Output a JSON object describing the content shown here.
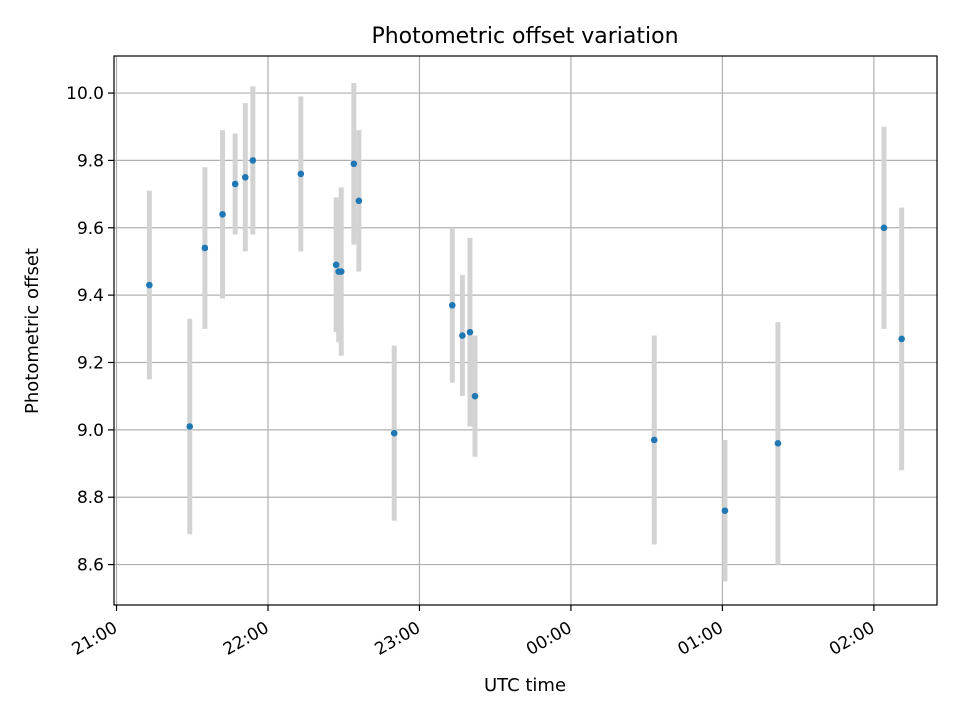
{
  "chart_data": {
    "type": "scatter",
    "title": "Photometric offset variation",
    "xlabel": "UTC time",
    "ylabel": "Photometric offset",
    "x_tick_labels": [
      "21:00",
      "22:00",
      "23:00",
      "00:00",
      "01:00",
      "02:00"
    ],
    "y_tick_labels": [
      "8.6",
      "8.8",
      "9.0",
      "9.2",
      "9.4",
      "9.6",
      "9.8",
      "10.0"
    ],
    "ylim": [
      8.48,
      10.11
    ],
    "xlim": [
      "20:59",
      "02:25"
    ],
    "grid": true,
    "colors": {
      "point": "#1f77b4",
      "errorbar": "#d3d3d3",
      "grid": "#b0b0b0"
    },
    "series": [
      {
        "points": [
          {
            "x": "21:13",
            "y": 9.43,
            "err": 0.28
          },
          {
            "x": "21:29",
            "y": 9.01,
            "err": 0.32
          },
          {
            "x": "21:35",
            "y": 9.54,
            "err": 0.24
          },
          {
            "x": "21:42",
            "y": 9.64,
            "err": 0.25
          },
          {
            "x": "21:47",
            "y": 9.73,
            "err": 0.15
          },
          {
            "x": "21:51",
            "y": 9.75,
            "err": 0.22
          },
          {
            "x": "21:54",
            "y": 9.8,
            "err": 0.22
          },
          {
            "x": "22:13",
            "y": 9.76,
            "err": 0.23
          },
          {
            "x": "22:27",
            "y": 9.49,
            "err": 0.2
          },
          {
            "x": "22:28",
            "y": 9.47,
            "err": 0.21
          },
          {
            "x": "22:29",
            "y": 9.47,
            "err": 0.25
          },
          {
            "x": "22:34",
            "y": 9.79,
            "err": 0.24
          },
          {
            "x": "22:36",
            "y": 9.68,
            "err": 0.21
          },
          {
            "x": "22:50",
            "y": 8.99,
            "err": 0.26
          },
          {
            "x": "23:13",
            "y": 9.37,
            "err": 0.23
          },
          {
            "x": "23:17",
            "y": 9.28,
            "err": 0.18
          },
          {
            "x": "23:20",
            "y": 9.29,
            "err": 0.28
          },
          {
            "x": "23:22",
            "y": 9.1,
            "err": 0.18
          },
          {
            "x": "00:33",
            "y": 8.97,
            "err": 0.31
          },
          {
            "x": "01:01",
            "y": 8.76,
            "err": 0.21
          },
          {
            "x": "01:22",
            "y": 8.96,
            "err": 0.36
          },
          {
            "x": "02:04",
            "y": 9.6,
            "err": 0.3
          },
          {
            "x": "02:11",
            "y": 9.27,
            "err": 0.39
          }
        ]
      }
    ]
  }
}
